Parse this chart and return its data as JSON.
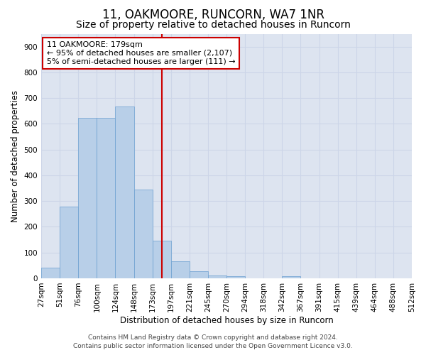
{
  "title": "11, OAKMOORE, RUNCORN, WA7 1NR",
  "subtitle": "Size of property relative to detached houses in Runcorn",
  "xlabel": "Distribution of detached houses by size in Runcorn",
  "ylabel": "Number of detached properties",
  "bin_labels": [
    "27sqm",
    "51sqm",
    "76sqm",
    "100sqm",
    "124sqm",
    "148sqm",
    "173sqm",
    "197sqm",
    "221sqm",
    "245sqm",
    "270sqm",
    "294sqm",
    "318sqm",
    "342sqm",
    "367sqm",
    "391sqm",
    "415sqm",
    "439sqm",
    "464sqm",
    "488sqm",
    "512sqm"
  ],
  "bar_values": [
    40,
    278,
    622,
    622,
    667,
    345,
    145,
    65,
    28,
    12,
    8,
    0,
    0,
    8,
    0,
    0,
    0,
    0,
    0,
    0
  ],
  "bar_color": "#b8cfe8",
  "bar_edge_color": "#6a9fd0",
  "vline_position": 6.5,
  "vline_color": "#cc0000",
  "annotation_text": "11 OAKMOORE: 179sqm\n← 95% of detached houses are smaller (2,107)\n5% of semi-detached houses are larger (111) →",
  "annotation_box_color": "#ffffff",
  "annotation_box_edge": "#cc0000",
  "ylim": [
    0,
    950
  ],
  "yticks": [
    0,
    100,
    200,
    300,
    400,
    500,
    600,
    700,
    800,
    900
  ],
  "grid_color": "#ccd5e8",
  "bg_color": "#dde4f0",
  "footer_line1": "Contains HM Land Registry data © Crown copyright and database right 2024.",
  "footer_line2": "Contains public sector information licensed under the Open Government Licence v3.0.",
  "title_fontsize": 12,
  "subtitle_fontsize": 10,
  "axis_label_fontsize": 8.5,
  "tick_fontsize": 7.5,
  "annotation_fontsize": 8,
  "footer_fontsize": 6.5
}
